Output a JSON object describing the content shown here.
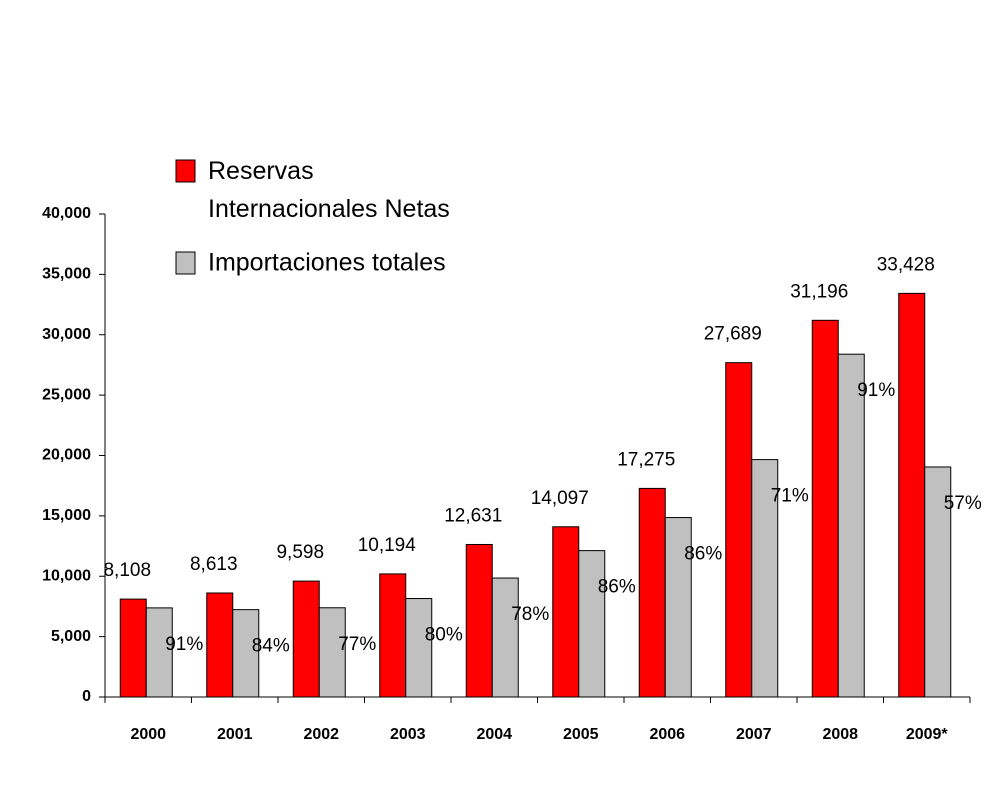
{
  "chart_data": {
    "type": "bar",
    "categories": [
      "2000",
      "2001",
      "2002",
      "2003",
      "2004",
      "2005",
      "2006",
      "2007",
      "2008",
      "2009*"
    ],
    "series": [
      {
        "name": "Reservas Internacionales Netas",
        "color": "#ff0000",
        "values": [
          8108,
          8613,
          9598,
          10194,
          12631,
          14097,
          17275,
          27689,
          31196,
          33428
        ],
        "value_labels": [
          "8,108",
          "8,613",
          "9,598",
          "10,194",
          "12,631",
          "14,097",
          "17,275",
          "27,689",
          "31,196",
          "33,428"
        ]
      },
      {
        "name": "Importaciones totales",
        "color": "#c0c0c0",
        "values": [
          7380,
          7235,
          7390,
          8155,
          9852,
          12123,
          14860,
          19660,
          28390,
          19050
        ],
        "annotations": [
          "91%",
          "84%",
          "77%",
          "80%",
          "78%",
          "86%",
          "86%",
          "71%",
          "91%",
          "57%"
        ]
      }
    ],
    "ylim": [
      0,
      40000
    ],
    "yticks": [
      0,
      {
        "value": 5000,
        "label": "5,000"
      },
      {
        "value": 10000,
        "label": "10,000"
      },
      {
        "value": 15000,
        "label": "15,000"
      },
      {
        "value": 20000,
        "label": "20,000"
      },
      {
        "value": 25000,
        "label": "25,000"
      },
      {
        "value": 30000,
        "label": "30,000"
      },
      {
        "value": 35000,
        "label": "35,000"
      },
      {
        "value": 40000,
        "label": "40,000"
      }
    ],
    "grid": false,
    "legend": "top-left"
  }
}
